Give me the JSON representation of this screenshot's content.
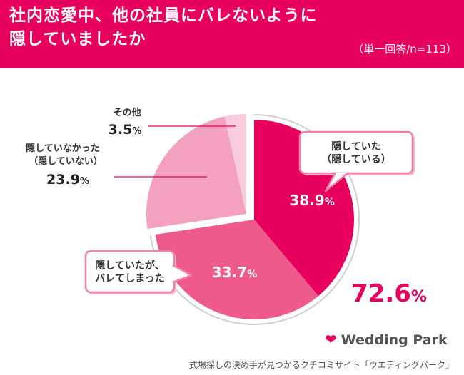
{
  "header": {
    "title_line1": "社内恋愛中、他の社員にバレないように",
    "title_line2": "隠していましたか",
    "note": "（単一回答/n=113）"
  },
  "colors": {
    "brand": "#e8005e",
    "slice_hid": "#e8005e",
    "slice_hid_found": "#ef5a8c",
    "slice_not_hid": "#f4a1bf",
    "slice_other": "#f9cbdc"
  },
  "chart_data": {
    "type": "pie",
    "unit": "%",
    "slices": [
      {
        "label_lines": [
          "隠していた",
          "（隠している）"
        ],
        "value": 38.9
      },
      {
        "label_lines": [
          "隠していたが、",
          "バレてしまった"
        ],
        "value": 33.7
      },
      {
        "label_lines": [
          "隠していなかった",
          "（隠していない）"
        ],
        "value": 23.9
      },
      {
        "label_lines": [
          "その他"
        ],
        "value": 3.5
      }
    ],
    "total_hid": {
      "value": 72.6
    }
  },
  "brand": {
    "name": "Wedding Park"
  },
  "footer": {
    "text": "式場探しの決め手が見つかるクチコミサイト「ウエディングパーク」"
  }
}
